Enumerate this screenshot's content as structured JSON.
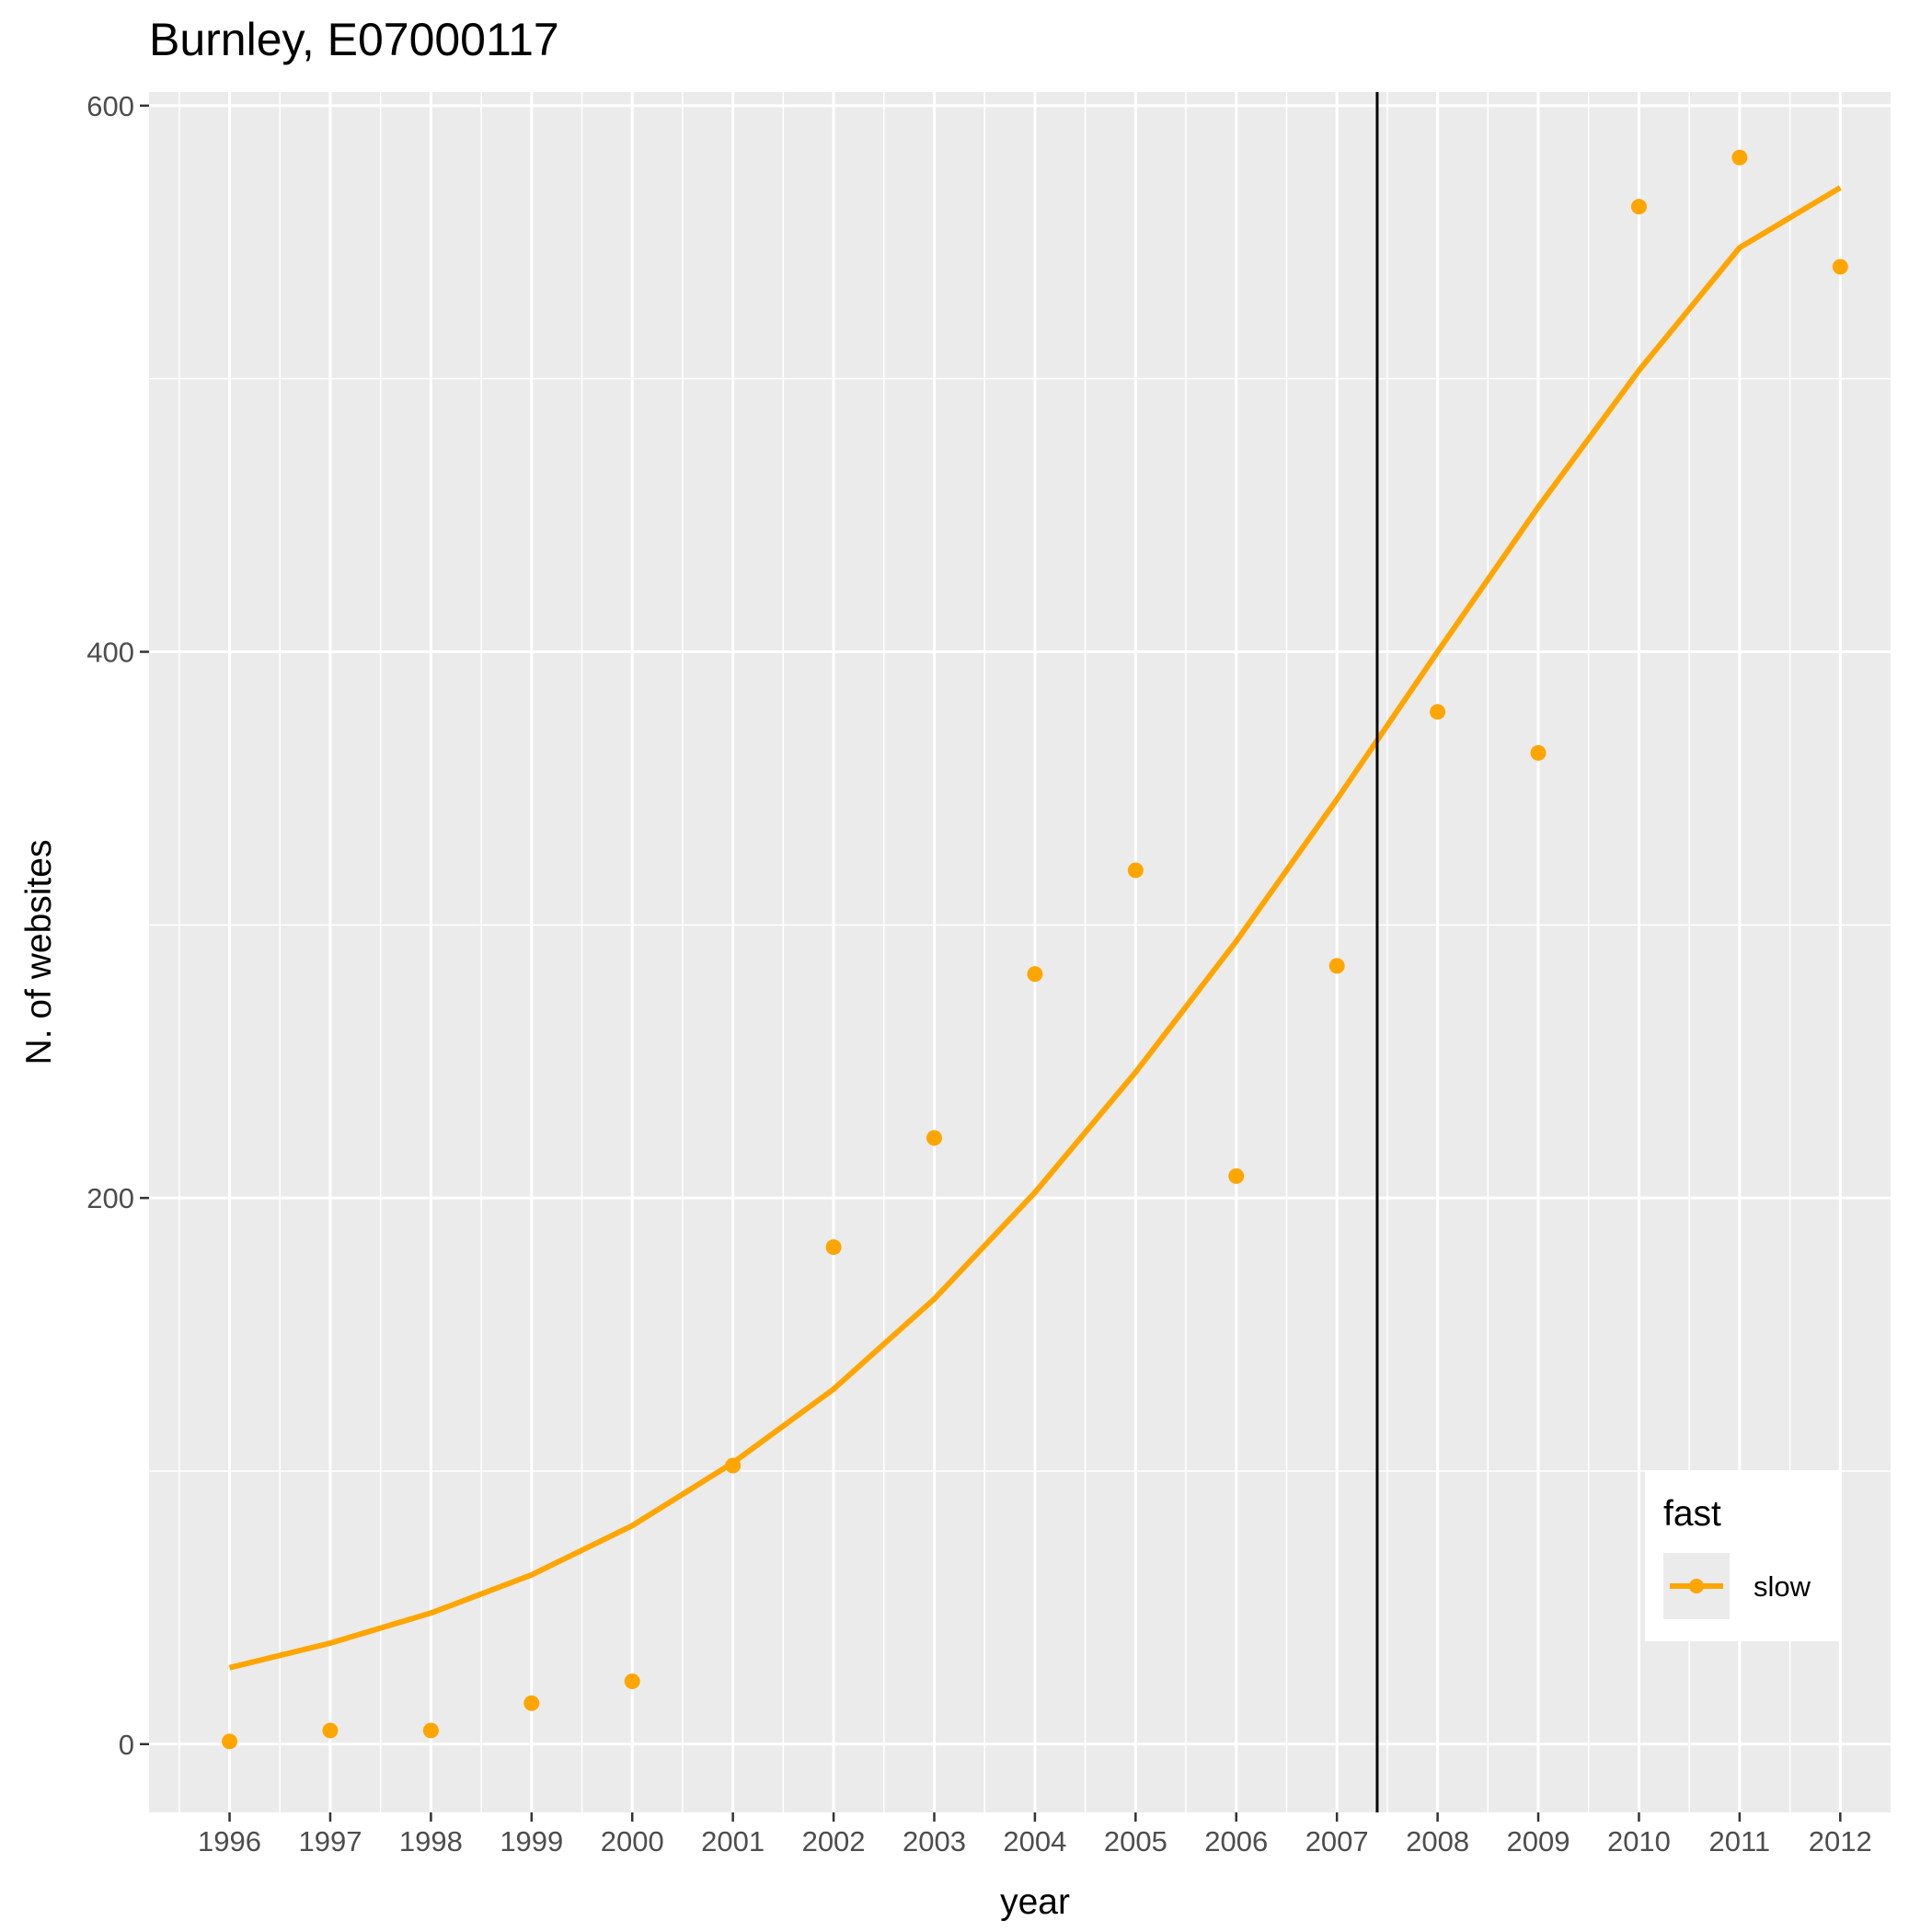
{
  "chart_data": {
    "type": "scatter",
    "title": "Burnley, E07000117",
    "xlabel": "year",
    "ylabel": "N. of websites",
    "x": [
      1996,
      1997,
      1998,
      1999,
      2000,
      2001,
      2002,
      2003,
      2004,
      2005,
      2006,
      2007,
      2008,
      2009,
      2010,
      2011,
      2012
    ],
    "x_ticks": [
      "1996",
      "1997",
      "1998",
      "1999",
      "2000",
      "2001",
      "2002",
      "2003",
      "2004",
      "2005",
      "2006",
      "2007",
      "2008",
      "2009",
      "2010",
      "2011",
      "2012"
    ],
    "y_ticks": [
      "0",
      "200",
      "400",
      "600"
    ],
    "xlim": [
      1995.2,
      2012.5
    ],
    "ylim": [
      -25,
      605
    ],
    "series": [
      {
        "name": "slow",
        "color": "#FFA500",
        "points": [
          1,
          5,
          5,
          15,
          23,
          102,
          182,
          222,
          282,
          320,
          208,
          285,
          378,
          363,
          563,
          581,
          541
        ],
        "trend": [
          28,
          37,
          48,
          62,
          80,
          103,
          130,
          163,
          202,
          246,
          294,
          346,
          400,
          453,
          503,
          548,
          570
        ]
      }
    ],
    "vline": {
      "x": 2007.4,
      "color": "#000000"
    },
    "legend": {
      "title": "fast",
      "position": "bottom-right",
      "entries": [
        "slow"
      ]
    },
    "grid": true
  }
}
